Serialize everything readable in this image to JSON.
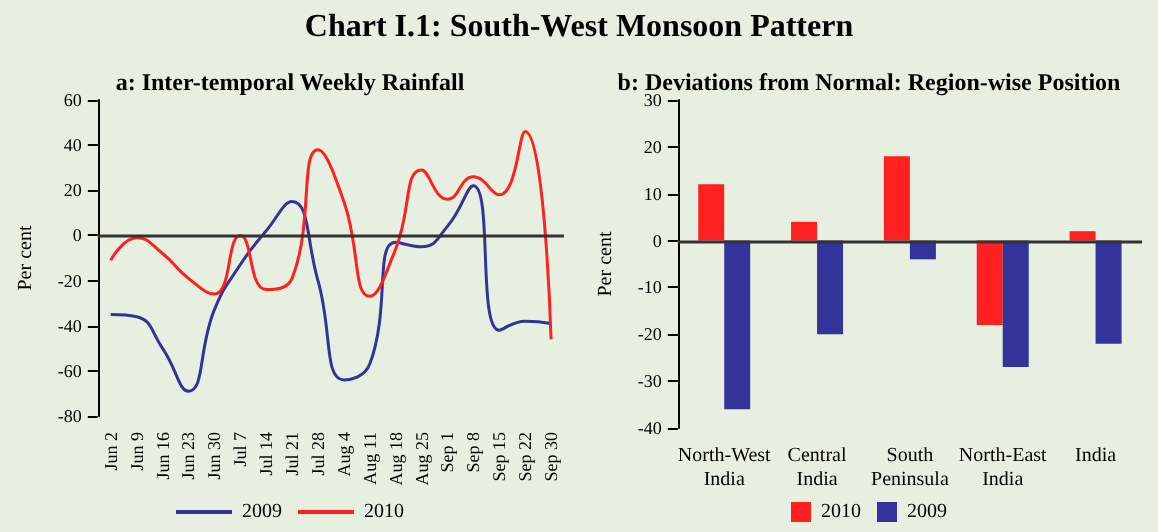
{
  "chart_data": [
    {
      "type": "line",
      "title": "a: Inter-temporal Weekly Rainfall",
      "ylabel": "Per cent",
      "annotations": [
        "Chart I.1: South-West Monsoon Pattern"
      ],
      "categories": [
        "Jun 2",
        "Jun 9",
        "Jun 16",
        "Jun 23",
        "Jun 30",
        "Jul 7",
        "Jul 14",
        "Jul 21",
        "Jul 28",
        "Aug 4",
        "Aug 11",
        "Aug 18",
        "Aug 25",
        "Sep 1",
        "Sep 8",
        "Sep 15",
        "Sep 22",
        "Sep 30"
      ],
      "series": [
        {
          "name": "2009",
          "color": "#333399",
          "values": [
            -35,
            -36,
            -50,
            -69,
            -33,
            -13,
            2,
            15,
            -20,
            -64,
            -57,
            -3,
            -5,
            4,
            22,
            -42,
            -38,
            -39
          ]
        },
        {
          "name": "2010",
          "color": "#ff2020",
          "values": [
            -11,
            -1,
            -8,
            -19,
            -26,
            0,
            -24,
            -19,
            38,
            15,
            -27,
            -6,
            29,
            16,
            26,
            18,
            46,
            -46
          ]
        }
      ],
      "ylim": [
        -80,
        60
      ],
      "yticks": [
        -80,
        -60,
        -40,
        -20,
        0,
        20,
        40,
        60
      ],
      "ref_lines": [
        {
          "axis": "y",
          "value": 0,
          "color": "#333333"
        }
      ],
      "grid": false,
      "legend": "bottom",
      "marker": "none"
    },
    {
      "type": "bar",
      "title": "b: Deviations from Normal: Region-wise Position",
      "ylabel": "Per cent",
      "categories": [
        "North-West India",
        "Central India",
        "South Peninsula",
        "North-East India",
        "India"
      ],
      "series": [
        {
          "name": "2010",
          "color": "#ff2020",
          "values": [
            12,
            4,
            18,
            -18,
            2
          ]
        },
        {
          "name": "2009",
          "color": "#333399",
          "values": [
            -36,
            -20,
            -4,
            -27,
            -22
          ]
        }
      ],
      "ylim": [
        -40,
        30
      ],
      "yticks": [
        -40,
        -30,
        -20,
        -10,
        0,
        10,
        20,
        30
      ],
      "ref_lines": [
        {
          "axis": "y",
          "value": 0,
          "color": "#333333"
        }
      ],
      "grid": false,
      "legend": "bottom"
    }
  ]
}
